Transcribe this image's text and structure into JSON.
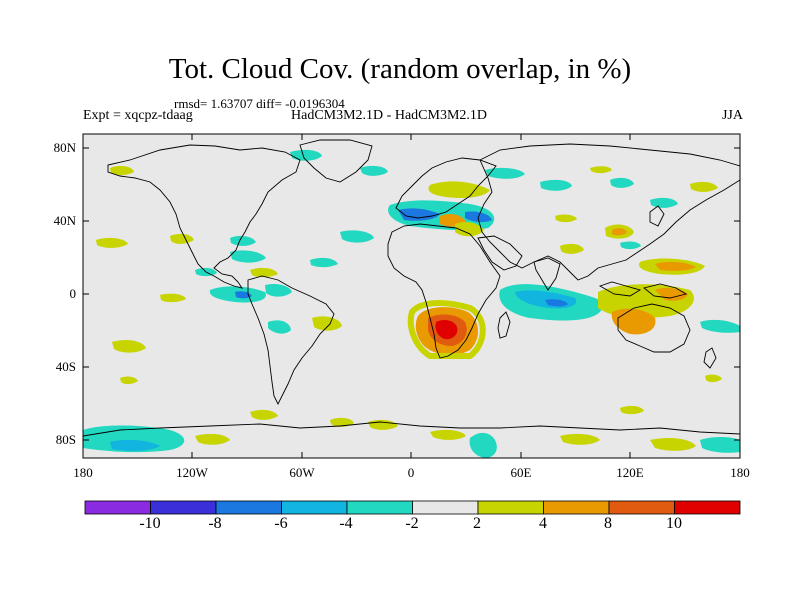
{
  "title": "Tot. Cloud Cov. (random overlap, in %)",
  "stats": "rmsd= 1.63707 diff= -0.0196304",
  "experiment": "Expt = xqcpz-tdaag",
  "models": "HadCM3M2.1D - HadCM3M2.1D",
  "season": "JJA",
  "lat_labels": [
    "80N",
    "40N",
    "0",
    "40S",
    "80S"
  ],
  "lon_labels": [
    "180",
    "120W",
    "60W",
    "0",
    "60E",
    "120E",
    "180"
  ],
  "colorbar": {
    "labels": [
      "-10",
      "-8",
      "-6",
      "-4",
      "-2",
      "2",
      "4",
      "8",
      "10"
    ],
    "colors": [
      "#8a2be2",
      "#3a2fd8",
      "#1a78e0",
      "#12b4e0",
      "#22d8c0",
      "#e8e8e8",
      "#c8d400",
      "#e89a00",
      "#e05a10",
      "#e00000"
    ]
  }
}
